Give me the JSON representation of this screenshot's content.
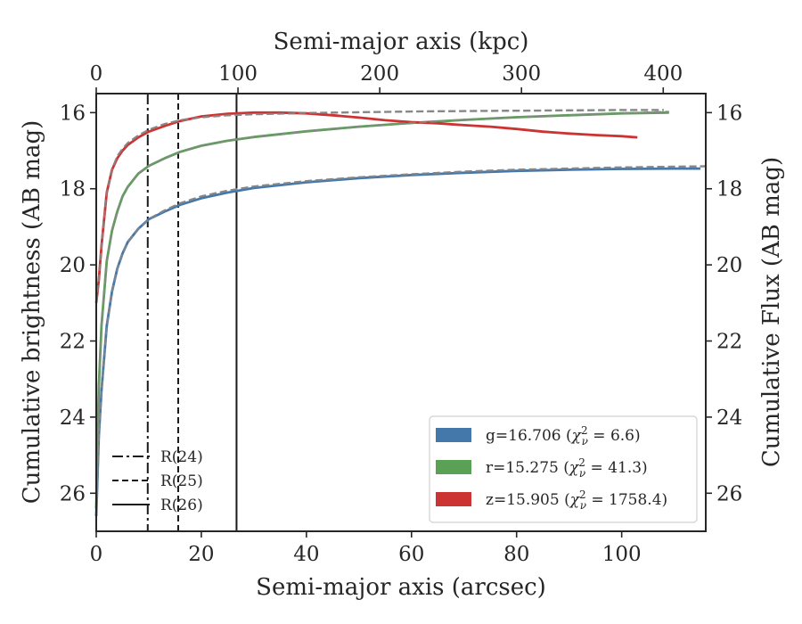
{
  "chart_data": {
    "type": "line",
    "xlabel": "Semi-major axis (arcsec)",
    "ylabel": "Cumulative brightness (AB mag)",
    "x2label": "Semi-major axis (kpc)",
    "y2label": "Cumulative Flux (AB mag)",
    "xlim": [
      0,
      116
    ],
    "ylim": [
      27,
      15.5
    ],
    "x2lim": [
      0,
      430
    ],
    "y_inverted": true,
    "xticks": [
      0,
      20,
      40,
      60,
      80,
      100
    ],
    "yticks": [
      16,
      18,
      20,
      22,
      24,
      26
    ],
    "x2ticks": [
      0,
      100,
      200,
      300,
      400
    ],
    "grid": false,
    "legend_position": "lower-right",
    "series": [
      {
        "name": "g=16.706 ($\\chi^2_\\nu = 6.6$)",
        "label_prefix": "g=16.706 (",
        "label_chi": "χ",
        "label_sub": "ν",
        "label_sup": "2",
        "label_suffix": " = 6.6)",
        "color": "#4477aa",
        "x": [
          0,
          0.5,
          1,
          2,
          3,
          4,
          5,
          6,
          8,
          10,
          13,
          16,
          20,
          25,
          30,
          40,
          50,
          60,
          70,
          80,
          90,
          100,
          110,
          115
        ],
        "y": [
          26.6,
          24.5,
          23.3,
          21.6,
          20.7,
          20.1,
          19.7,
          19.4,
          19.05,
          18.8,
          18.6,
          18.42,
          18.25,
          18.1,
          17.98,
          17.83,
          17.72,
          17.64,
          17.58,
          17.53,
          17.5,
          17.48,
          17.47,
          17.47
        ]
      },
      {
        "name": "r=15.275 ($\\chi^2_\\nu = 41.3$)",
        "label_prefix": "r=15.275 (",
        "label_chi": "χ",
        "label_sub": "ν",
        "label_sup": "2",
        "label_suffix": " = 41.3)",
        "color": "#5ba155",
        "x": [
          0,
          0.5,
          1,
          2,
          3,
          4,
          5,
          6,
          8,
          10,
          13,
          16,
          20,
          25,
          30,
          40,
          50,
          60,
          70,
          80,
          90,
          100,
          109
        ],
        "y": [
          26.4,
          23.2,
          21.6,
          19.9,
          19.1,
          18.6,
          18.2,
          17.95,
          17.6,
          17.4,
          17.2,
          17.03,
          16.87,
          16.74,
          16.64,
          16.49,
          16.37,
          16.27,
          16.19,
          16.12,
          16.07,
          16.02,
          16.0
        ]
      },
      {
        "name": "z=15.905 ($\\chi^2_\\nu = 1758.4$)",
        "label_prefix": "z=15.905 (",
        "label_chi": "χ",
        "label_sub": "ν",
        "label_sup": "2",
        "label_suffix": " = 1758.4)",
        "color": "#cc3333",
        "x": [
          0,
          0.5,
          1,
          2,
          3,
          4,
          5,
          6,
          8,
          10,
          13,
          16,
          20,
          25,
          30,
          35,
          40,
          45,
          50,
          55,
          60,
          65,
          70,
          75,
          80,
          85,
          90,
          95,
          100,
          103
        ],
        "y": [
          21.0,
          20.4,
          19.5,
          18.1,
          17.5,
          17.2,
          17.0,
          16.85,
          16.65,
          16.5,
          16.35,
          16.22,
          16.1,
          16.03,
          16.0,
          16.0,
          16.02,
          16.07,
          16.13,
          16.2,
          16.25,
          16.28,
          16.33,
          16.37,
          16.43,
          16.5,
          16.55,
          16.59,
          16.62,
          16.65
        ]
      }
    ],
    "models": [
      {
        "for": "g",
        "color": "#888888",
        "x": [
          0,
          0.5,
          1,
          2,
          3,
          4,
          5,
          6,
          8,
          10,
          13,
          16,
          20,
          25,
          30,
          40,
          50,
          60,
          70,
          80,
          90,
          100,
          110,
          116
        ],
        "y": [
          26.6,
          24.5,
          23.3,
          21.6,
          20.7,
          20.1,
          19.7,
          19.4,
          19.05,
          18.8,
          18.57,
          18.38,
          18.2,
          18.05,
          17.94,
          17.8,
          17.7,
          17.62,
          17.55,
          17.5,
          17.47,
          17.44,
          17.42,
          17.41
        ]
      },
      {
        "for": "r",
        "color": "#888888",
        "x": [
          0,
          0.5,
          1,
          2,
          3,
          4,
          5,
          6,
          8,
          10,
          13,
          16,
          20,
          25,
          30,
          40,
          50,
          60,
          70,
          80,
          90,
          100,
          109
        ],
        "y": [
          26.4,
          23.2,
          21.6,
          19.9,
          19.1,
          18.6,
          18.2,
          17.95,
          17.6,
          17.4,
          17.2,
          17.03,
          16.87,
          16.74,
          16.64,
          16.49,
          16.37,
          16.27,
          16.19,
          16.12,
          16.07,
          16.02,
          15.98
        ]
      },
      {
        "for": "z",
        "color": "#888888",
        "x": [
          0,
          0.5,
          1,
          2,
          3,
          4,
          5,
          6,
          8,
          10,
          13,
          16,
          20,
          25,
          30,
          40,
          50,
          60,
          70,
          80,
          90,
          100,
          108
        ],
        "y": [
          21.0,
          20.4,
          19.5,
          18.1,
          17.5,
          17.15,
          16.95,
          16.8,
          16.6,
          16.45,
          16.3,
          16.2,
          16.12,
          16.07,
          16.04,
          16.01,
          15.99,
          15.97,
          15.96,
          15.95,
          15.94,
          15.93,
          15.93
        ]
      }
    ],
    "reference_lines": [
      {
        "label": "R(24)",
        "x": 9.8,
        "style": "dashdot"
      },
      {
        "label": "R(25)",
        "x": 15.6,
        "style": "dashed"
      },
      {
        "label": "R(26)",
        "x": 26.7,
        "style": "solid"
      }
    ]
  }
}
